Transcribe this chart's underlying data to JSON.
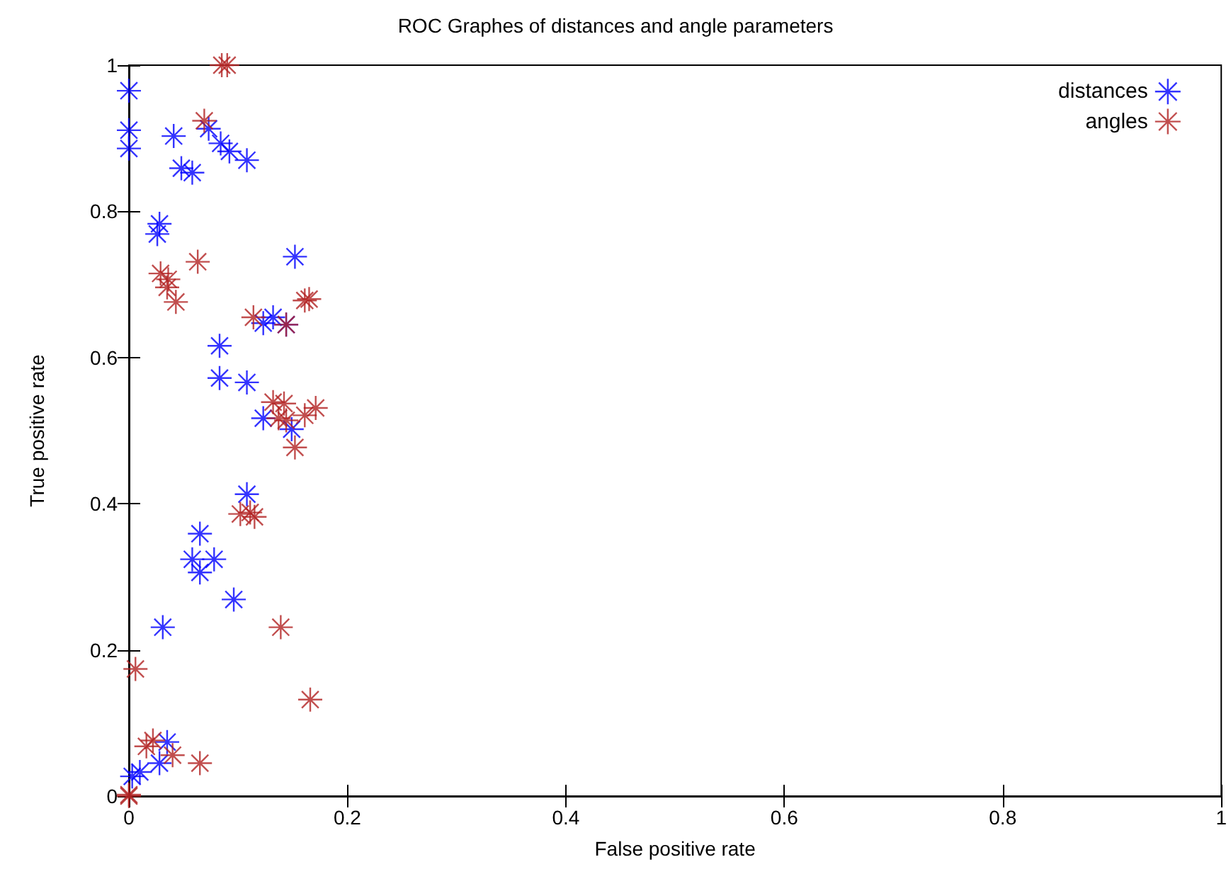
{
  "chart_data": {
    "type": "scatter",
    "title": "ROC Graphes of distances and angle parameters",
    "xlabel": "False positive rate",
    "ylabel": "True positive rate",
    "xlim": [
      0,
      1
    ],
    "ylim": [
      0,
      1
    ],
    "xticks": [
      0,
      0.2,
      0.4,
      0.6,
      0.8,
      1
    ],
    "yticks": [
      0,
      0.2,
      0.4,
      0.6,
      0.8,
      1
    ],
    "grid": false,
    "legend": "top right",
    "marker": "cross",
    "series": [
      {
        "name": "distances",
        "color": "#0000ff",
        "x": [
          0,
          0,
          0,
          0.041,
          0.073,
          0.084,
          0.092,
          0.108,
          0.048,
          0.058,
          0.028,
          0.026,
          0.152,
          0.083,
          0.083,
          0.108,
          0.123,
          0.132,
          0.144,
          0.123,
          0.149,
          0.108,
          0.065,
          0.058,
          0.078,
          0.065,
          0.096,
          0.031,
          0.035,
          0.028,
          0.01,
          0.003
        ],
        "values": [
          0.965,
          0.911,
          0.886,
          0.903,
          0.913,
          0.893,
          0.882,
          0.87,
          0.859,
          0.853,
          0.783,
          0.769,
          0.738,
          0.616,
          0.572,
          0.566,
          0.647,
          0.655,
          0.645,
          0.517,
          0.502,
          0.413,
          0.359,
          0.324,
          0.324,
          0.306,
          0.269,
          0.231,
          0.074,
          0.045,
          0.033,
          0.027
        ]
      },
      {
        "name": "angles",
        "color": "#b22222",
        "x": [
          0.085,
          0.09,
          0.069,
          0.029,
          0.036,
          0.035,
          0.043,
          0.063,
          0.161,
          0.165,
          0.114,
          0.144,
          0.132,
          0.142,
          0.171,
          0.137,
          0.144,
          0.161,
          0.152,
          0.102,
          0.111,
          0.115,
          0.139,
          0.166,
          0.006,
          0.016,
          0.022,
          0.04,
          0.065,
          0,
          0
        ],
        "values": [
          1,
          1,
          0.924,
          0.715,
          0.707,
          0.696,
          0.676,
          0.731,
          0.678,
          0.68,
          0.655,
          0.645,
          0.539,
          0.537,
          0.531,
          0.517,
          0.514,
          0.521,
          0.477,
          0.386,
          0.388,
          0.382,
          0.231,
          0.132,
          0.174,
          0.068,
          0.076,
          0.056,
          0.045,
          0.002,
          0
        ]
      }
    ]
  }
}
